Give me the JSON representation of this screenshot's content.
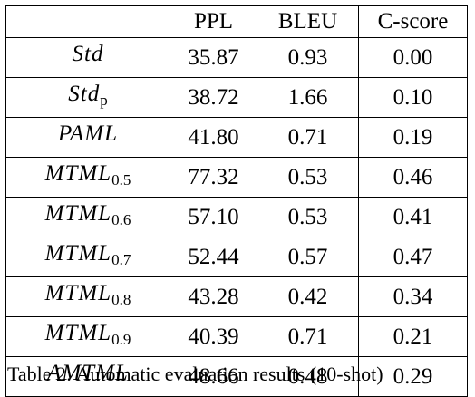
{
  "table": {
    "header": {
      "model": "",
      "ppl": "PPL",
      "bleu": "BLEU",
      "cscore": "C-score"
    },
    "rows": [
      {
        "model": "Std",
        "sub": "",
        "ppl": "35.87",
        "bleu": "0.93",
        "cscore": "0.00"
      },
      {
        "model": "Std",
        "sub": "p",
        "ppl": "38.72",
        "bleu": "1.66",
        "cscore": "0.10"
      },
      {
        "model": "PAML",
        "sub": "",
        "ppl": "41.80",
        "bleu": "0.71",
        "cscore": "0.19"
      },
      {
        "model": "MTML",
        "sub": "0.5",
        "ppl": "77.32",
        "bleu": "0.53",
        "cscore": "0.46"
      },
      {
        "model": "MTML",
        "sub": "0.6",
        "ppl": "57.10",
        "bleu": "0.53",
        "cscore": "0.41"
      },
      {
        "model": "MTML",
        "sub": "0.7",
        "ppl": "52.44",
        "bleu": "0.57",
        "cscore": "0.47"
      },
      {
        "model": "MTML",
        "sub": "0.8",
        "ppl": "43.28",
        "bleu": "0.42",
        "cscore": "0.34"
      },
      {
        "model": "MTML",
        "sub": "0.9",
        "ppl": "40.39",
        "bleu": "0.71",
        "cscore": "0.21"
      },
      {
        "model": "AMTML",
        "sub": "",
        "ppl": "48.66",
        "bleu": "0.48",
        "cscore": "0.29"
      }
    ]
  },
  "caption": "Table 2: Automatic evaluation results (10-shot)"
}
